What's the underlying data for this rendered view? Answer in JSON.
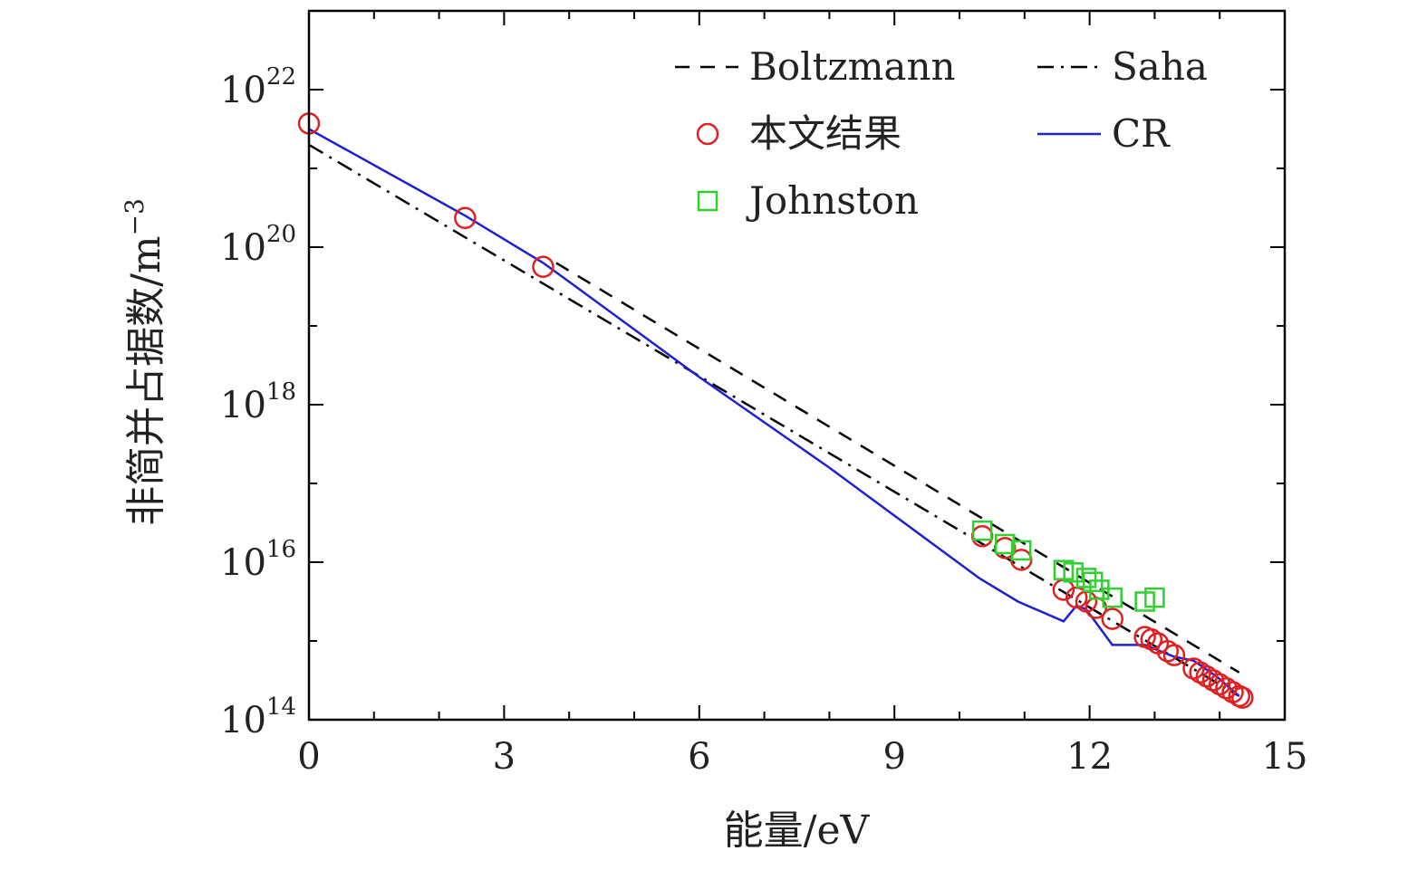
{
  "chart_data": {
    "type": "scatter",
    "xlabel": "能量/eV",
    "ylabel": "非简并占据数/m⁻³",
    "ylabel_main": "非简并占据数/m",
    "ylabel_exp": "−3",
    "xlim": [
      0,
      15
    ],
    "ylim_log10": [
      14,
      23
    ],
    "yscale": "log",
    "grid": false,
    "legend_position": "top-right",
    "x_ticks": [
      {
        "value": 0,
        "label": "0"
      },
      {
        "value": 3,
        "label": "3"
      },
      {
        "value": 6,
        "label": "6"
      },
      {
        "value": 9,
        "label": "9"
      },
      {
        "value": 12,
        "label": "12"
      },
      {
        "value": 15,
        "label": "15"
      }
    ],
    "y_ticks": [
      {
        "value": 14,
        "base": "10",
        "exp": "14"
      },
      {
        "value": 16,
        "base": "10",
        "exp": "16"
      },
      {
        "value": 18,
        "base": "10",
        "exp": "18"
      },
      {
        "value": 20,
        "base": "10",
        "exp": "20"
      },
      {
        "value": 22,
        "base": "10",
        "exp": "22"
      }
    ],
    "series": [
      {
        "name": "Boltzmann",
        "kind": "line",
        "style": "dashed",
        "color": "#000000",
        "points_log10": [
          [
            3.8,
            19.8
          ],
          [
            14.3,
            14.6
          ]
        ]
      },
      {
        "name": "Saha",
        "kind": "line",
        "style": "dashdot",
        "color": "#000000",
        "points_log10": [
          [
            0,
            21.3
          ],
          [
            14.3,
            14.3
          ]
        ]
      },
      {
        "name": "本文结果",
        "kind": "marker",
        "marker": "circle",
        "color": "#e02020",
        "points_log10": [
          [
            0,
            21.57
          ],
          [
            2.4,
            20.37
          ],
          [
            3.6,
            19.75
          ],
          [
            10.35,
            16.33
          ],
          [
            10.7,
            16.18
          ],
          [
            10.95,
            16.03
          ],
          [
            11.6,
            15.65
          ],
          [
            11.8,
            15.55
          ],
          [
            11.95,
            15.5
          ],
          [
            12.1,
            15.42
          ],
          [
            12.35,
            15.28
          ],
          [
            12.85,
            15.05
          ],
          [
            12.95,
            15.02
          ],
          [
            13.05,
            14.97
          ],
          [
            13.2,
            14.87
          ],
          [
            13.3,
            14.82
          ],
          [
            13.6,
            14.65
          ],
          [
            13.7,
            14.6
          ],
          [
            13.8,
            14.55
          ],
          [
            13.9,
            14.5
          ],
          [
            14.0,
            14.45
          ],
          [
            14.1,
            14.4
          ],
          [
            14.2,
            14.35
          ],
          [
            14.3,
            14.3
          ],
          [
            14.35,
            14.28
          ]
        ]
      },
      {
        "name": "CR",
        "kind": "line",
        "style": "solid",
        "color": "#2020d0",
        "points_log10": [
          [
            0,
            21.5
          ],
          [
            2.4,
            20.4
          ],
          [
            3.6,
            19.8
          ],
          [
            4.1,
            19.5
          ],
          [
            6.0,
            18.35
          ],
          [
            8.0,
            17.2
          ],
          [
            10.3,
            15.8
          ],
          [
            10.9,
            15.5
          ],
          [
            11.6,
            15.25
          ],
          [
            11.8,
            15.45
          ],
          [
            11.95,
            15.4
          ],
          [
            12.35,
            14.95
          ],
          [
            12.85,
            14.95
          ],
          [
            13.3,
            14.8
          ],
          [
            13.6,
            14.75
          ],
          [
            13.95,
            14.55
          ],
          [
            14.3,
            14.3
          ]
        ]
      },
      {
        "name": "Johnston",
        "kind": "marker",
        "marker": "square",
        "color": "#30d030",
        "points_log10": [
          [
            10.35,
            16.4
          ],
          [
            10.7,
            16.23
          ],
          [
            10.95,
            16.15
          ],
          [
            11.6,
            15.9
          ],
          [
            11.75,
            15.87
          ],
          [
            11.95,
            15.8
          ],
          [
            12.05,
            15.75
          ],
          [
            12.15,
            15.65
          ],
          [
            12.35,
            15.55
          ],
          [
            12.85,
            15.5
          ],
          [
            13.0,
            15.55
          ]
        ]
      }
    ]
  }
}
